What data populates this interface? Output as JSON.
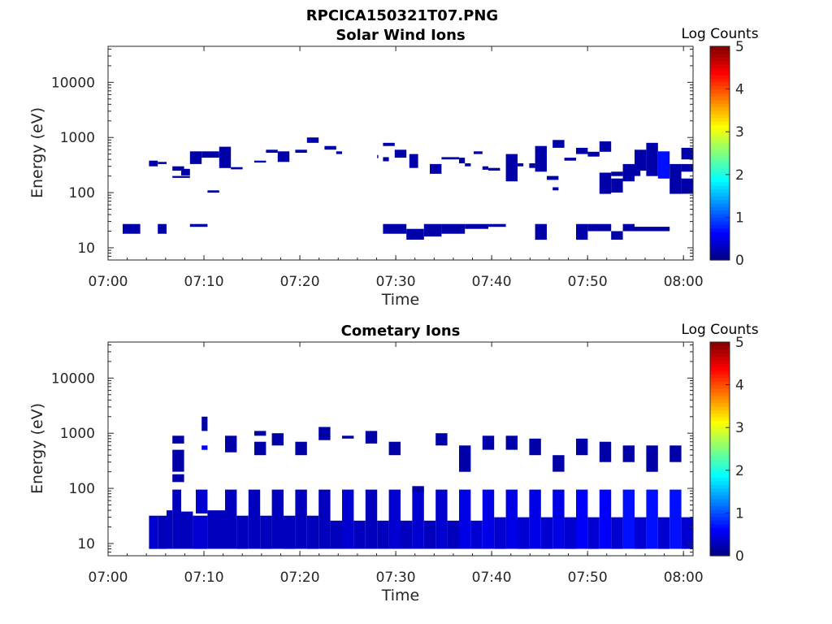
{
  "figure_title": "RPCICA150321T07.PNG",
  "chart_data": [
    {
      "type": "heatmap",
      "title": "Solar Wind Ions",
      "xlabel": "Time",
      "ylabel": "Energy (eV)",
      "xlim": [
        "07:00",
        "08:01"
      ],
      "x_ticks": [
        "07:00",
        "07:10",
        "07:20",
        "07:30",
        "07:40",
        "07:50",
        "08:00"
      ],
      "y_scale": "log",
      "ylim": [
        6,
        45000
      ],
      "y_ticks": [
        "10",
        "100",
        "1000",
        "10000"
      ],
      "colorbar": {
        "label": "Log Counts",
        "range": [
          0,
          5
        ],
        "ticks": [
          "0",
          "1",
          "2",
          "3",
          "4",
          "5"
        ]
      },
      "cells": [
        [
          7.0,
          8.5,
          300,
          380,
          0.2
        ],
        [
          8.5,
          10.0,
          330,
          360,
          0.2
        ],
        [
          14.0,
          16.0,
          330,
          560,
          0.2
        ],
        [
          16.0,
          19.0,
          430,
          560,
          0.2
        ],
        [
          19.0,
          21.0,
          280,
          680,
          0.2
        ],
        [
          21.0,
          23.0,
          265,
          290,
          0.2
        ],
        [
          11.0,
          13.0,
          250,
          300,
          0.2
        ],
        [
          11.0,
          14.0,
          185,
          200,
          0.2
        ],
        [
          12.5,
          14.0,
          205,
          270,
          0.2
        ],
        [
          17.0,
          19.0,
          100,
          110,
          0.2
        ],
        [
          25.0,
          27.0,
          350,
          380,
          0.2
        ],
        [
          27.0,
          29.0,
          530,
          600,
          0.2
        ],
        [
          29.0,
          31.0,
          360,
          560,
          0.2
        ],
        [
          32.0,
          34.0,
          530,
          600,
          0.2
        ],
        [
          34.0,
          36.0,
          800,
          1000,
          0.2
        ],
        [
          37.0,
          39.0,
          600,
          700,
          0.2
        ],
        [
          39.0,
          40.0,
          500,
          560,
          0.2
        ],
        [
          47.0,
          49.0,
          700,
          800,
          0.2
        ],
        [
          46.0,
          46.2,
          420,
          480,
          0.2
        ],
        [
          47.0,
          48.0,
          370,
          440,
          0.2
        ],
        [
          49.0,
          51.0,
          430,
          600,
          0.2
        ],
        [
          51.5,
          53.0,
          280,
          500,
          0.2
        ],
        [
          55.0,
          57.0,
          220,
          330,
          0.2
        ],
        [
          57.0,
          60.0,
          400,
          440,
          0.2
        ],
        [
          60.0,
          61.0,
          340,
          430,
          0.2
        ],
        [
          61.0,
          62.0,
          300,
          340,
          0.2
        ],
        [
          62.5,
          64.0,
          500,
          560,
          0.2
        ],
        [
          64.0,
          65.0,
          260,
          300,
          0.2
        ],
        [
          65.0,
          67.0,
          250,
          280,
          0.2
        ],
        [
          68.0,
          70.0,
          160,
          500,
          0.2
        ],
        [
          70.0,
          71.0,
          300,
          340,
          0.2
        ],
        [
          72.0,
          73.0,
          280,
          340,
          0.2
        ],
        [
          73.0,
          75.0,
          240,
          700,
          0.2
        ],
        [
          75.0,
          77.0,
          170,
          200,
          0.2
        ],
        [
          76.0,
          78.0,
          650,
          900,
          0.2
        ],
        [
          76.0,
          77.0,
          110,
          125,
          0.2
        ],
        [
          78.0,
          80.0,
          380,
          430,
          0.2
        ],
        [
          80.0,
          82.0,
          500,
          650,
          0.2
        ],
        [
          82.0,
          84.0,
          450,
          550,
          0.2
        ],
        [
          84.0,
          86.0,
          550,
          850,
          0.2
        ],
        [
          84.0,
          86.0,
          95,
          230,
          0.2
        ],
        [
          86.0,
          88.0,
          200,
          240,
          0.2
        ],
        [
          86.0,
          88.0,
          100,
          180,
          0.2
        ],
        [
          88.0,
          90.0,
          160,
          330,
          0.2
        ],
        [
          89.0,
          91.0,
          200,
          260,
          0.2
        ],
        [
          90.0,
          92.0,
          250,
          600,
          0.2
        ],
        [
          92.0,
          94.0,
          200,
          800,
          0.2
        ],
        [
          94.0,
          96.0,
          180,
          560,
          0.7
        ],
        [
          96.0,
          98.0,
          95,
          330,
          0.2
        ],
        [
          98.0,
          100.0,
          400,
          650,
          0.2
        ],
        [
          98.0,
          100.0,
          240,
          330,
          0.2
        ],
        [
          98.0,
          100.0,
          95,
          180,
          0.2
        ],
        [
          2.5,
          5.5,
          18,
          27,
          0.2
        ],
        [
          8.5,
          10.0,
          18,
          27,
          0.2
        ],
        [
          14.0,
          17.0,
          24,
          27,
          0.2
        ],
        [
          47.0,
          51.0,
          18,
          27,
          0.2
        ],
        [
          51.0,
          54.0,
          14,
          22,
          0.2
        ],
        [
          54.0,
          57.0,
          16,
          27,
          0.2
        ],
        [
          57.0,
          61.0,
          18,
          27,
          0.2
        ],
        [
          61.0,
          65.0,
          22,
          27,
          0.2
        ],
        [
          65.0,
          68.0,
          24,
          27,
          0.2
        ],
        [
          73.0,
          75.0,
          14,
          27,
          0.2
        ],
        [
          80.0,
          82.0,
          14,
          27,
          0.2
        ],
        [
          82.0,
          86.0,
          20,
          27,
          0.2
        ],
        [
          86.0,
          88.0,
          14,
          20,
          0.2
        ],
        [
          88.0,
          90.0,
          20,
          27,
          0.2
        ],
        [
          90.0,
          96.0,
          20,
          24,
          0.2
        ]
      ]
    },
    {
      "type": "heatmap",
      "title": "Cometary Ions",
      "xlabel": "Time",
      "ylabel": "Energy (eV)",
      "xlim": [
        "07:00",
        "08:01"
      ],
      "x_ticks": [
        "07:00",
        "07:10",
        "07:20",
        "07:30",
        "07:40",
        "07:50",
        "08:00"
      ],
      "y_scale": "log",
      "ylim": [
        6,
        45000
      ],
      "y_ticks": [
        "10",
        "100",
        "1000",
        "10000"
      ],
      "colorbar": {
        "label": "Log Counts",
        "range": [
          0,
          5
        ],
        "ticks": [
          "0",
          "1",
          "2",
          "3",
          "4",
          "5"
        ]
      },
      "cells": [
        [
          7.0,
          8.5,
          8,
          32,
          0.4
        ],
        [
          8.5,
          10.0,
          8,
          32,
          0.3
        ],
        [
          10.0,
          11.0,
          8,
          40,
          0.3
        ],
        [
          11.0,
          12.5,
          8,
          95,
          0.3
        ],
        [
          11.0,
          13.0,
          130,
          180,
          0.2
        ],
        [
          11.0,
          13.0,
          200,
          500,
          0.2
        ],
        [
          11.0,
          13.0,
          650,
          900,
          0.2
        ],
        [
          12.5,
          14.5,
          8,
          38,
          0.3
        ],
        [
          14.5,
          17.0,
          8,
          32,
          0.4
        ],
        [
          15.0,
          17.0,
          35,
          95,
          0.4
        ],
        [
          16.0,
          17.0,
          1100,
          2000,
          0.2
        ],
        [
          16.0,
          17.0,
          500,
          600,
          0.6
        ],
        [
          17.0,
          20.0,
          8,
          40,
          0.3
        ],
        [
          20.0,
          22.0,
          8,
          95,
          0.3
        ],
        [
          20.0,
          22.0,
          450,
          900,
          0.2
        ],
        [
          22.0,
          24.0,
          8,
          32,
          0.3
        ],
        [
          24.0,
          26.0,
          8,
          95,
          0.3
        ],
        [
          25.0,
          27.0,
          400,
          700,
          0.2
        ],
        [
          25.0,
          27.0,
          900,
          1100,
          0.2
        ],
        [
          26.0,
          28.0,
          8,
          32,
          0.3
        ],
        [
          28.0,
          30.0,
          8,
          95,
          0.3
        ],
        [
          28.0,
          30.0,
          600,
          1000,
          0.2
        ],
        [
          30.0,
          32.0,
          8,
          32,
          0.3
        ],
        [
          32.0,
          34.0,
          8,
          95,
          0.3
        ],
        [
          32.0,
          34.0,
          400,
          700,
          0.2
        ],
        [
          34.0,
          36.0,
          8,
          32,
          0.3
        ],
        [
          36.0,
          38.0,
          8,
          95,
          0.3
        ],
        [
          36.0,
          38.0,
          750,
          1300,
          0.2
        ],
        [
          38.0,
          40.0,
          8,
          26,
          0.3
        ],
        [
          40.0,
          42.0,
          8,
          95,
          0.4
        ],
        [
          40.0,
          42.0,
          800,
          900,
          0.2
        ],
        [
          42.0,
          44.0,
          8,
          26,
          0.3
        ],
        [
          44.0,
          46.0,
          8,
          95,
          0.3
        ],
        [
          44.0,
          46.0,
          650,
          1100,
          0.2
        ],
        [
          46.0,
          48.0,
          8,
          26,
          0.3
        ],
        [
          48.0,
          50.0,
          8,
          95,
          0.4
        ],
        [
          48.0,
          50.0,
          400,
          700,
          0.2
        ],
        [
          50.0,
          52.0,
          8,
          26,
          0.3
        ],
        [
          52.0,
          54.0,
          8,
          100,
          0.4
        ],
        [
          52.0,
          54.0,
          85,
          110,
          0.2
        ],
        [
          54.0,
          56.0,
          8,
          26,
          0.3
        ],
        [
          56.0,
          58.0,
          8,
          95,
          0.4
        ],
        [
          56.0,
          58.0,
          600,
          1000,
          0.2
        ],
        [
          58.0,
          60.0,
          8,
          26,
          0.3
        ],
        [
          60.0,
          62.0,
          8,
          95,
          0.5
        ],
        [
          60.0,
          62.0,
          200,
          600,
          0.2
        ],
        [
          62.0,
          64.0,
          8,
          26,
          0.4
        ],
        [
          64.0,
          66.0,
          8,
          95,
          0.5
        ],
        [
          64.0,
          66.0,
          500,
          900,
          0.2
        ],
        [
          66.0,
          68.0,
          8,
          30,
          0.4
        ],
        [
          68.0,
          70.0,
          8,
          95,
          0.5
        ],
        [
          68.0,
          70.0,
          500,
          900,
          0.2
        ],
        [
          70.0,
          72.0,
          8,
          30,
          0.4
        ],
        [
          72.0,
          74.0,
          8,
          95,
          0.5
        ],
        [
          72.0,
          74.0,
          400,
          800,
          0.2
        ],
        [
          74.0,
          76.0,
          8,
          30,
          0.4
        ],
        [
          76.0,
          78.0,
          8,
          95,
          0.5
        ],
        [
          76.0,
          78.0,
          200,
          400,
          0.2
        ],
        [
          78.0,
          80.0,
          8,
          30,
          0.4
        ],
        [
          80.0,
          82.0,
          8,
          95,
          0.6
        ],
        [
          80.0,
          82.0,
          400,
          800,
          0.2
        ],
        [
          82.0,
          84.0,
          8,
          30,
          0.4
        ],
        [
          84.0,
          86.0,
          8,
          95,
          0.6
        ],
        [
          84.0,
          86.0,
          300,
          700,
          0.2
        ],
        [
          86.0,
          88.0,
          8,
          30,
          0.4
        ],
        [
          88.0,
          90.0,
          8,
          95,
          0.7
        ],
        [
          88.0,
          90.0,
          300,
          600,
          0.2
        ],
        [
          90.0,
          92.0,
          8,
          30,
          0.4
        ],
        [
          92.0,
          94.0,
          8,
          95,
          0.7
        ],
        [
          92.0,
          94.0,
          200,
          600,
          0.2
        ],
        [
          94.0,
          96.0,
          8,
          30,
          0.4
        ],
        [
          96.0,
          98.0,
          8,
          95,
          0.7
        ],
        [
          96.0,
          98.0,
          300,
          600,
          0.2
        ],
        [
          98.0,
          100.0,
          8,
          30,
          0.4
        ]
      ]
    }
  ]
}
